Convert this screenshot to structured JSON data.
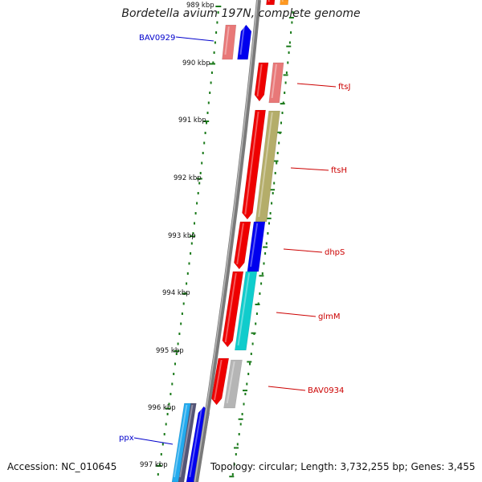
{
  "title": "Bordetella avium 197N, complete genome",
  "footer": {
    "accession": "Accession: NC_010645",
    "summary": "Topology: circular; Length: 3,732,255 bp; Genes: 3,455"
  },
  "colors": {
    "backbone": "#7a7a7a",
    "tick": "#1a7a1a",
    "label_forward": "#0000cc",
    "label_reverse": "#cc0000",
    "red": "#ee0000",
    "salmon": "#e87878",
    "blue": "#0000ee",
    "olive": "#b4ad6a",
    "cyan": "#10cccc",
    "skyblue": "#22aaee",
    "gray": "#b5b5b5",
    "orange": "#ff9922"
  },
  "kbp_labels": [
    "989 kbp",
    "990 kbp",
    "991 kbp",
    "992 kbp",
    "993 kbp",
    "994 kbp",
    "995 kbp",
    "996 kbp",
    "997 kbp"
  ],
  "gene_labels": [
    {
      "name": "BAV0929",
      "strand": "forward"
    },
    {
      "name": "ftsJ",
      "strand": "reverse"
    },
    {
      "name": "ftsH",
      "strand": "reverse"
    },
    {
      "name": "dhpS",
      "strand": "reverse"
    },
    {
      "name": "glmM",
      "strand": "reverse"
    },
    {
      "name": "BAV0934",
      "strand": "reverse"
    },
    {
      "name": "ppx",
      "strand": "forward"
    }
  ]
}
